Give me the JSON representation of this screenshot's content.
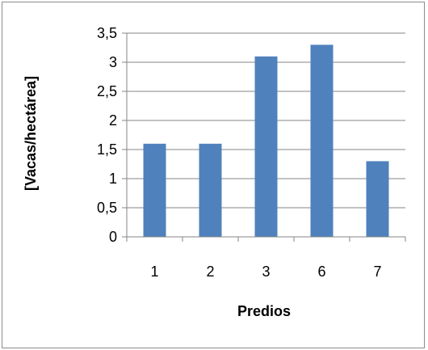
{
  "chart_data": {
    "type": "bar",
    "categories": [
      "1",
      "2",
      "3",
      "6",
      "7"
    ],
    "values": [
      1.6,
      1.6,
      3.1,
      3.3,
      1.3
    ],
    "title": "",
    "xlabel": "Predios",
    "ylabel": "[Vacas/hectárea]",
    "ylim": [
      0,
      3.5
    ],
    "yticks": [
      "0",
      "0,5",
      "1",
      "1,5",
      "2",
      "2,5",
      "3",
      "3,5"
    ],
    "grid": true,
    "legend": "none",
    "colors": {
      "bar": "#4f81bd",
      "grid": "#868686",
      "axis": "#868686"
    }
  }
}
